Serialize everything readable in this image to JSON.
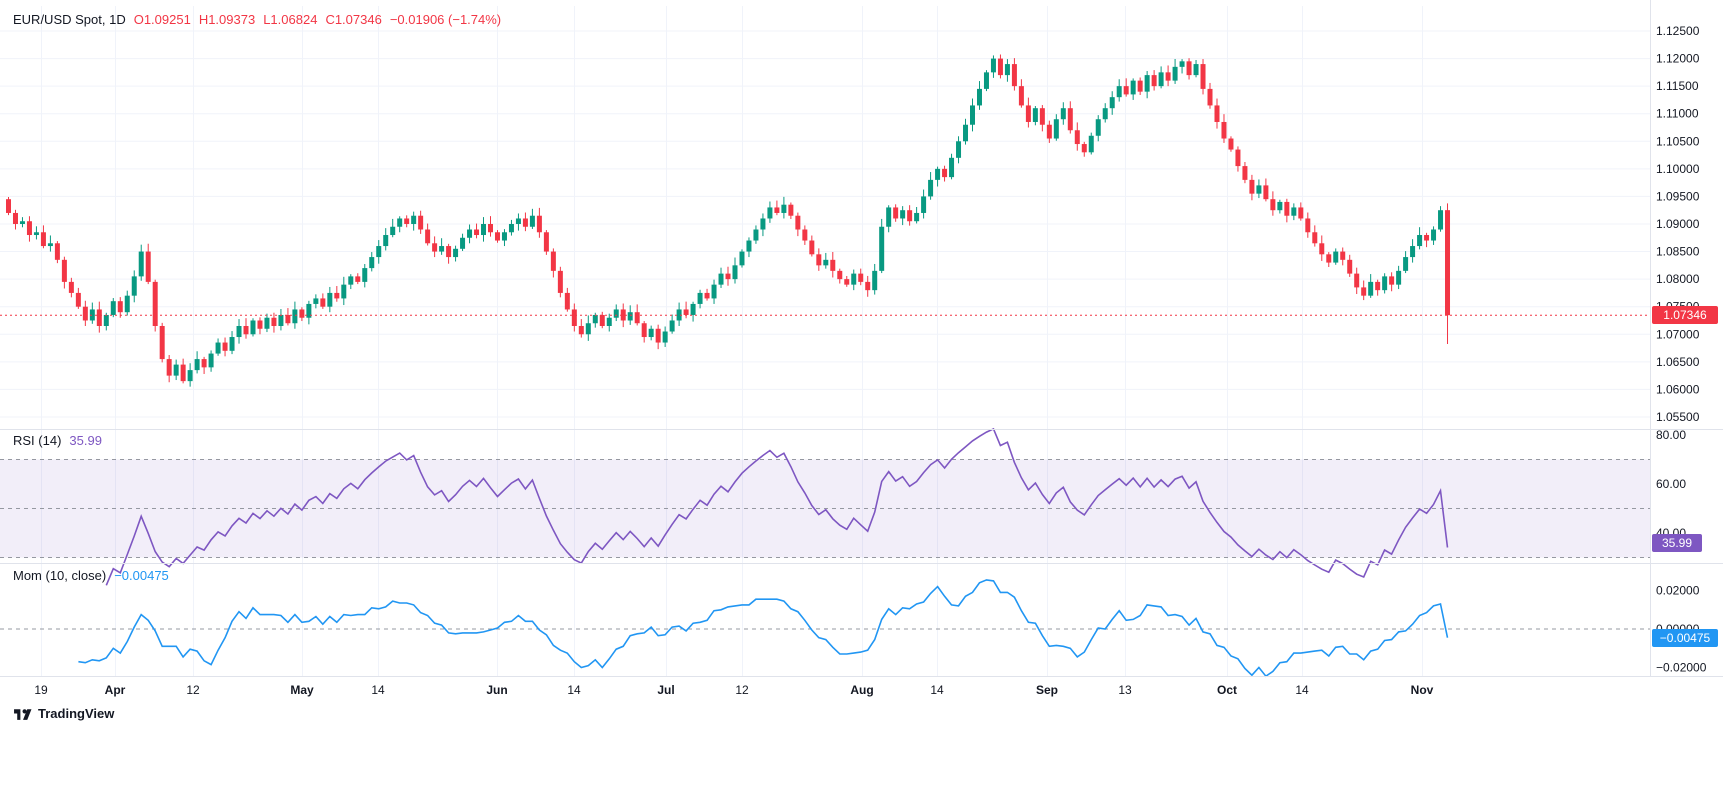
{
  "header": {
    "symbol_title": "EUR/USD Spot, 1D",
    "ohlc": {
      "open": "O1.09251",
      "high": "H1.09373",
      "low": "L1.06824",
      "close": "C1.07346",
      "change": "−0.01906 (−1.74%)"
    }
  },
  "rsi_panel": {
    "title": "RSI (14)",
    "value": "35.99",
    "badge": "35.99"
  },
  "mom_panel": {
    "title": "Mom (10, close)",
    "value": "−0.00475",
    "badge": "−0.00475"
  },
  "price_scale": {
    "ticks": [
      "1.12500",
      "1.12000",
      "1.11500",
      "1.11000",
      "1.10500",
      "1.10000",
      "1.09500",
      "1.09000",
      "1.08500",
      "1.08000",
      "1.07500",
      "1.07000",
      "1.06500",
      "1.06000",
      "1.05500"
    ],
    "current_price": "1.07346"
  },
  "rsi_scale": {
    "ticks": [
      "80.00",
      "60.00",
      "40.00"
    ]
  },
  "mom_scale": {
    "ticks": [
      "0.02000",
      "0.00000",
      "−0.02000"
    ]
  },
  "time_scale": {
    "labels": [
      {
        "text": "19",
        "f": 0.028
      },
      {
        "text": "Apr",
        "f": 0.079
      },
      {
        "text": "12",
        "f": 0.133
      },
      {
        "text": "May",
        "f": 0.208
      },
      {
        "text": "14",
        "f": 0.26
      },
      {
        "text": "Jun",
        "f": 0.342
      },
      {
        "text": "14",
        "f": 0.395
      },
      {
        "text": "Jul",
        "f": 0.459
      },
      {
        "text": "12",
        "f": 0.511
      },
      {
        "text": "Aug",
        "f": 0.594
      },
      {
        "text": "14",
        "f": 0.645
      },
      {
        "text": "Sep",
        "f": 0.721
      },
      {
        "text": "13",
        "f": 0.775
      },
      {
        "text": "Oct",
        "f": 0.845
      },
      {
        "text": "14",
        "f": 0.897
      },
      {
        "text": "Nov",
        "f": 0.979
      }
    ]
  },
  "footer": {
    "brand": "TradingView"
  },
  "colors": {
    "up": "#089981",
    "down": "#f23645",
    "rsi": "#7e57c2",
    "rsi_band": "rgba(126,87,194,0.10)",
    "mom": "#2196f3",
    "grid": "#f0f3fa",
    "separator": "#e0e3eb",
    "dashed": "#9598a1",
    "text": "#131722"
  },
  "chart_data": [
    {
      "type": "candlestick",
      "name": "EUR/USD Spot, 1D",
      "ylim": [
        1.055,
        1.125
      ],
      "first_open": 1.0945,
      "closes": [
        1.092,
        1.09,
        1.0905,
        1.088,
        1.0885,
        1.086,
        1.0865,
        1.0835,
        1.0795,
        1.0775,
        1.075,
        1.0725,
        1.0745,
        1.0715,
        1.0735,
        1.076,
        1.074,
        1.077,
        1.0805,
        1.085,
        1.0795,
        1.0715,
        1.0655,
        1.0625,
        1.0645,
        1.0615,
        1.0635,
        1.0655,
        1.064,
        1.0665,
        1.0685,
        1.067,
        1.0695,
        1.0715,
        1.07,
        1.0725,
        1.071,
        1.073,
        1.0715,
        1.0735,
        1.072,
        1.0745,
        1.073,
        1.0755,
        1.0765,
        1.075,
        1.0775,
        1.0765,
        1.079,
        1.0805,
        1.0795,
        1.082,
        1.084,
        1.086,
        1.088,
        1.0895,
        1.091,
        1.09,
        1.0915,
        1.089,
        1.0865,
        1.085,
        1.086,
        1.084,
        1.0855,
        1.0875,
        1.089,
        1.088,
        1.09,
        1.0885,
        1.087,
        1.0885,
        1.09,
        1.091,
        1.0895,
        1.0915,
        1.0885,
        1.085,
        1.0815,
        1.0775,
        1.0745,
        1.0715,
        1.07,
        1.072,
        1.0735,
        1.0715,
        1.073,
        1.0745,
        1.0725,
        1.074,
        1.072,
        1.0695,
        1.071,
        1.0685,
        1.0705,
        1.0725,
        1.0745,
        1.0735,
        1.0755,
        1.0775,
        1.0765,
        1.079,
        1.081,
        1.08,
        1.0825,
        1.085,
        1.087,
        1.089,
        1.091,
        1.093,
        1.092,
        1.0935,
        1.0915,
        1.089,
        1.087,
        1.0845,
        1.0825,
        1.0835,
        1.0815,
        1.08,
        1.079,
        1.081,
        1.0795,
        1.078,
        1.0815,
        1.0895,
        1.093,
        1.091,
        1.0925,
        1.0905,
        1.092,
        1.095,
        1.098,
        1.1,
        1.0985,
        1.102,
        1.105,
        1.108,
        1.1115,
        1.1145,
        1.1175,
        1.12,
        1.117,
        1.119,
        1.115,
        1.1115,
        1.1085,
        1.111,
        1.108,
        1.1055,
        1.109,
        1.111,
        1.107,
        1.1045,
        1.103,
        1.106,
        1.109,
        1.111,
        1.113,
        1.115,
        1.1135,
        1.116,
        1.114,
        1.117,
        1.115,
        1.1175,
        1.116,
        1.1185,
        1.1195,
        1.117,
        1.119,
        1.1145,
        1.1115,
        1.1085,
        1.1055,
        1.1035,
        1.1005,
        1.098,
        1.0955,
        1.097,
        1.0945,
        1.0925,
        1.094,
        1.0915,
        1.093,
        1.091,
        1.0885,
        1.0865,
        1.0845,
        1.083,
        1.085,
        1.0835,
        1.081,
        1.0785,
        1.077,
        1.0795,
        1.078,
        1.0805,
        1.079,
        1.0815,
        1.084,
        1.086,
        1.088,
        1.087,
        1.089,
        1.0925,
        1.07346
      ],
      "last_candle": {
        "open": 1.09251,
        "high": 1.09373,
        "low": 1.06824,
        "close": 1.07346
      }
    },
    {
      "type": "line",
      "name": "RSI (14)",
      "period": 14,
      "source": "close",
      "last_value": 35.99,
      "ylim": [
        28,
        82
      ],
      "levels": [
        70,
        50,
        30
      ]
    },
    {
      "type": "line",
      "name": "Mom (10, close)",
      "period": 10,
      "source": "close",
      "last_value": -0.00475,
      "ylim": [
        -0.03,
        0.03
      ],
      "levels": [
        0
      ]
    }
  ]
}
